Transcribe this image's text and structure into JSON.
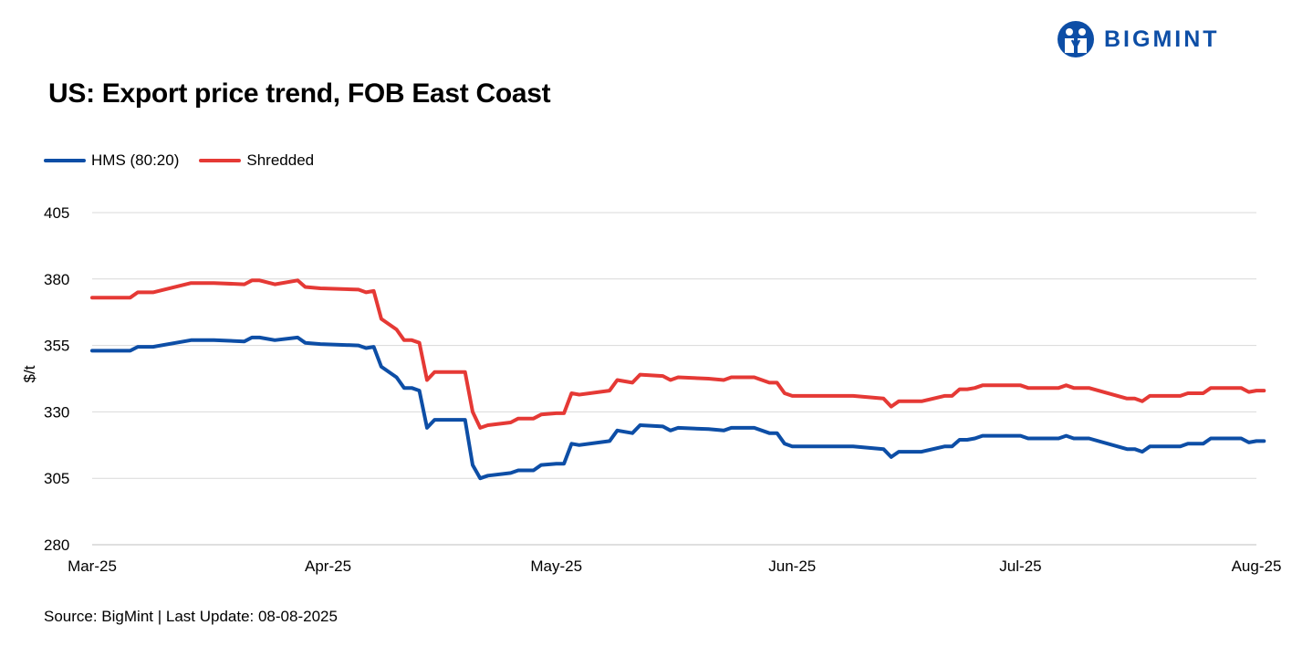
{
  "logo": {
    "text": "BIGMINT",
    "icon": "bigmint-logo-icon",
    "color": "#0d4ea6"
  },
  "chart_data": {
    "type": "line",
    "title": "US: Export price trend, FOB East Coast",
    "ylabel": "$/t",
    "xlabel": "",
    "ylim": [
      280,
      405
    ],
    "yticks": [
      280,
      305,
      330,
      355,
      380,
      405
    ],
    "xticks": [
      "Mar-25",
      "Apr-25",
      "May-25",
      "Jun-25",
      "Jul-25",
      "Aug-25"
    ],
    "x_range": [
      "2025-03-01",
      "2025-08-01"
    ],
    "grid": "horizontal",
    "legend_position": "top-left",
    "series": [
      {
        "name": "HMS (80:20)",
        "color": "#0d4ea6",
        "points": [
          [
            "2025-03-01",
            353
          ],
          [
            "2025-03-03",
            353
          ],
          [
            "2025-03-04",
            353
          ],
          [
            "2025-03-05",
            353
          ],
          [
            "2025-03-06",
            353
          ],
          [
            "2025-03-07",
            354.5
          ],
          [
            "2025-03-09",
            354.5
          ],
          [
            "2025-03-14",
            357
          ],
          [
            "2025-03-17",
            357
          ],
          [
            "2025-03-21",
            356.5
          ],
          [
            "2025-03-22",
            358
          ],
          [
            "2025-03-23",
            358
          ],
          [
            "2025-03-25",
            357
          ],
          [
            "2025-03-28",
            358
          ],
          [
            "2025-03-29",
            356
          ],
          [
            "2025-03-31",
            355.5
          ],
          [
            "2025-04-05",
            355
          ],
          [
            "2025-04-06",
            354
          ],
          [
            "2025-04-07",
            354.5
          ],
          [
            "2025-04-08",
            347
          ],
          [
            "2025-04-10",
            343
          ],
          [
            "2025-04-11",
            339
          ],
          [
            "2025-04-12",
            339
          ],
          [
            "2025-04-13",
            338
          ],
          [
            "2025-04-14",
            324
          ],
          [
            "2025-04-15",
            327
          ],
          [
            "2025-04-18",
            327
          ],
          [
            "2025-04-19",
            327
          ],
          [
            "2025-04-20",
            310
          ],
          [
            "2025-04-21",
            305
          ],
          [
            "2025-04-22",
            306
          ],
          [
            "2025-04-25",
            307
          ],
          [
            "2025-04-26",
            308
          ],
          [
            "2025-04-28",
            308
          ],
          [
            "2025-04-29",
            310
          ],
          [
            "2025-05-01",
            310.5
          ],
          [
            "2025-05-02",
            310.5
          ],
          [
            "2025-05-03",
            318
          ],
          [
            "2025-05-04",
            317.5
          ],
          [
            "2025-05-08",
            319
          ],
          [
            "2025-05-09",
            323
          ],
          [
            "2025-05-11",
            322
          ],
          [
            "2025-05-12",
            325
          ],
          [
            "2025-05-15",
            324.5
          ],
          [
            "2025-05-16",
            323
          ],
          [
            "2025-05-17",
            324
          ],
          [
            "2025-05-21",
            323.5
          ],
          [
            "2025-05-23",
            323
          ],
          [
            "2025-05-24",
            324
          ],
          [
            "2025-05-27",
            324
          ],
          [
            "2025-05-29",
            322
          ],
          [
            "2025-05-30",
            322
          ],
          [
            "2025-05-31",
            318
          ],
          [
            "2025-06-01",
            317
          ],
          [
            "2025-06-09",
            317
          ],
          [
            "2025-06-13",
            316
          ],
          [
            "2025-06-14",
            313
          ],
          [
            "2025-06-15",
            315
          ],
          [
            "2025-06-18",
            315
          ],
          [
            "2025-06-21",
            317
          ],
          [
            "2025-06-22",
            317
          ],
          [
            "2025-06-23",
            319.5
          ],
          [
            "2025-06-24",
            319.5
          ],
          [
            "2025-06-25",
            320
          ],
          [
            "2025-06-26",
            321
          ],
          [
            "2025-07-01",
            321
          ],
          [
            "2025-07-02",
            320
          ],
          [
            "2025-07-06",
            320
          ],
          [
            "2025-07-07",
            321
          ],
          [
            "2025-07-08",
            320
          ],
          [
            "2025-07-10",
            320
          ],
          [
            "2025-07-15",
            316
          ],
          [
            "2025-07-16",
            316
          ],
          [
            "2025-07-17",
            315
          ],
          [
            "2025-07-18",
            317
          ],
          [
            "2025-07-22",
            317
          ],
          [
            "2025-07-23",
            318
          ],
          [
            "2025-07-25",
            318
          ],
          [
            "2025-07-26",
            320
          ],
          [
            "2025-07-30",
            320
          ],
          [
            "2025-07-31",
            318.5
          ],
          [
            "2025-08-01",
            319
          ],
          [
            "2025-08-02",
            319
          ]
        ]
      },
      {
        "name": "Shredded",
        "color": "#e53935",
        "points": [
          [
            "2025-03-01",
            373
          ],
          [
            "2025-03-03",
            373
          ],
          [
            "2025-03-04",
            373
          ],
          [
            "2025-03-05",
            373
          ],
          [
            "2025-03-06",
            373
          ],
          [
            "2025-03-07",
            375
          ],
          [
            "2025-03-09",
            375
          ],
          [
            "2025-03-14",
            378.5
          ],
          [
            "2025-03-17",
            378.5
          ],
          [
            "2025-03-21",
            378
          ],
          [
            "2025-03-22",
            379.5
          ],
          [
            "2025-03-23",
            379.5
          ],
          [
            "2025-03-25",
            378
          ],
          [
            "2025-03-28",
            379.5
          ],
          [
            "2025-03-29",
            377
          ],
          [
            "2025-03-31",
            376.5
          ],
          [
            "2025-04-05",
            376
          ],
          [
            "2025-04-06",
            375
          ],
          [
            "2025-04-07",
            375.5
          ],
          [
            "2025-04-08",
            365
          ],
          [
            "2025-04-10",
            361
          ],
          [
            "2025-04-11",
            357
          ],
          [
            "2025-04-12",
            357
          ],
          [
            "2025-04-13",
            356
          ],
          [
            "2025-04-14",
            342
          ],
          [
            "2025-04-15",
            345
          ],
          [
            "2025-04-18",
            345
          ],
          [
            "2025-04-19",
            345
          ],
          [
            "2025-04-20",
            330
          ],
          [
            "2025-04-21",
            324
          ],
          [
            "2025-04-22",
            325
          ],
          [
            "2025-04-25",
            326
          ],
          [
            "2025-04-26",
            327.5
          ],
          [
            "2025-04-28",
            327.5
          ],
          [
            "2025-04-29",
            329
          ],
          [
            "2025-05-01",
            329.5
          ],
          [
            "2025-05-02",
            329.5
          ],
          [
            "2025-05-03",
            337
          ],
          [
            "2025-05-04",
            336.5
          ],
          [
            "2025-05-08",
            338
          ],
          [
            "2025-05-09",
            342
          ],
          [
            "2025-05-11",
            341
          ],
          [
            "2025-05-12",
            344
          ],
          [
            "2025-05-15",
            343.5
          ],
          [
            "2025-05-16",
            342
          ],
          [
            "2025-05-17",
            343
          ],
          [
            "2025-05-21",
            342.5
          ],
          [
            "2025-05-23",
            342
          ],
          [
            "2025-05-24",
            343
          ],
          [
            "2025-05-27",
            343
          ],
          [
            "2025-05-29",
            341
          ],
          [
            "2025-05-30",
            341
          ],
          [
            "2025-05-31",
            337
          ],
          [
            "2025-06-01",
            336
          ],
          [
            "2025-06-09",
            336
          ],
          [
            "2025-06-13",
            335
          ],
          [
            "2025-06-14",
            332
          ],
          [
            "2025-06-15",
            334
          ],
          [
            "2025-06-18",
            334
          ],
          [
            "2025-06-21",
            336
          ],
          [
            "2025-06-22",
            336
          ],
          [
            "2025-06-23",
            338.5
          ],
          [
            "2025-06-24",
            338.5
          ],
          [
            "2025-06-25",
            339
          ],
          [
            "2025-06-26",
            340
          ],
          [
            "2025-07-01",
            340
          ],
          [
            "2025-07-02",
            339
          ],
          [
            "2025-07-06",
            339
          ],
          [
            "2025-07-07",
            340
          ],
          [
            "2025-07-08",
            339
          ],
          [
            "2025-07-10",
            339
          ],
          [
            "2025-07-15",
            335
          ],
          [
            "2025-07-16",
            335
          ],
          [
            "2025-07-17",
            334
          ],
          [
            "2025-07-18",
            336
          ],
          [
            "2025-07-22",
            336
          ],
          [
            "2025-07-23",
            337
          ],
          [
            "2025-07-25",
            337
          ],
          [
            "2025-07-26",
            339
          ],
          [
            "2025-07-30",
            339
          ],
          [
            "2025-07-31",
            337.5
          ],
          [
            "2025-08-01",
            338
          ],
          [
            "2025-08-02",
            338
          ]
        ]
      }
    ]
  },
  "footer": {
    "source": "Source: BigMint | Last Update: 08-08-2025"
  }
}
